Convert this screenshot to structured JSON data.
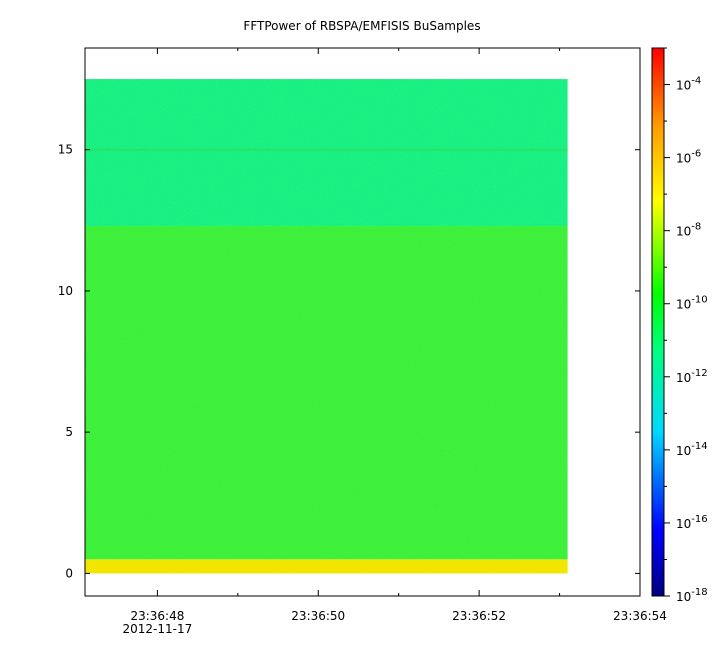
{
  "chart_data": {
    "type": "heatmap",
    "title": "FFTPower of RBSPA/EMFISIS  BuSamples",
    "xlabel": "",
    "ylabel": "",
    "x_ticks": [
      {
        "label": "23:36:48",
        "sublabel": "2012-11-17"
      },
      {
        "label": "23:36:50",
        "sublabel": ""
      },
      {
        "label": "23:36:52",
        "sublabel": ""
      },
      {
        "label": "23:36:54",
        "sublabel": ""
      }
    ],
    "x_range": [
      "23:36:47.1",
      "23:36:54.0"
    ],
    "data_x_range": [
      "23:36:47.1",
      "23:36:53.1"
    ],
    "y_ticks": [
      0,
      5,
      10,
      15
    ],
    "ylim": [
      -0.8,
      18.6
    ],
    "data_y_range": [
      0,
      17.5
    ],
    "colorbar": {
      "scale": "log",
      "range": [
        1e-18,
        0.001
      ],
      "tick_exponents": [
        -18,
        -16,
        -14,
        -12,
        -10,
        -8,
        -6,
        -4
      ],
      "tick_base": "10"
    },
    "bands": [
      {
        "y_range": [
          0,
          0.5
        ],
        "approx_power": 1e-08,
        "color": "#f2e600"
      },
      {
        "y_range": [
          0.5,
          12.3
        ],
        "approx_power": 1e-10,
        "color": "#3cf03c"
      },
      {
        "y_range": [
          12.3,
          17.5
        ],
        "approx_power": 1e-12,
        "color": "#19f084"
      }
    ],
    "line_features": [
      {
        "y": 15.0,
        "approx_power": 1e-11
      }
    ],
    "grid": false,
    "legend": "colorbar-right"
  }
}
